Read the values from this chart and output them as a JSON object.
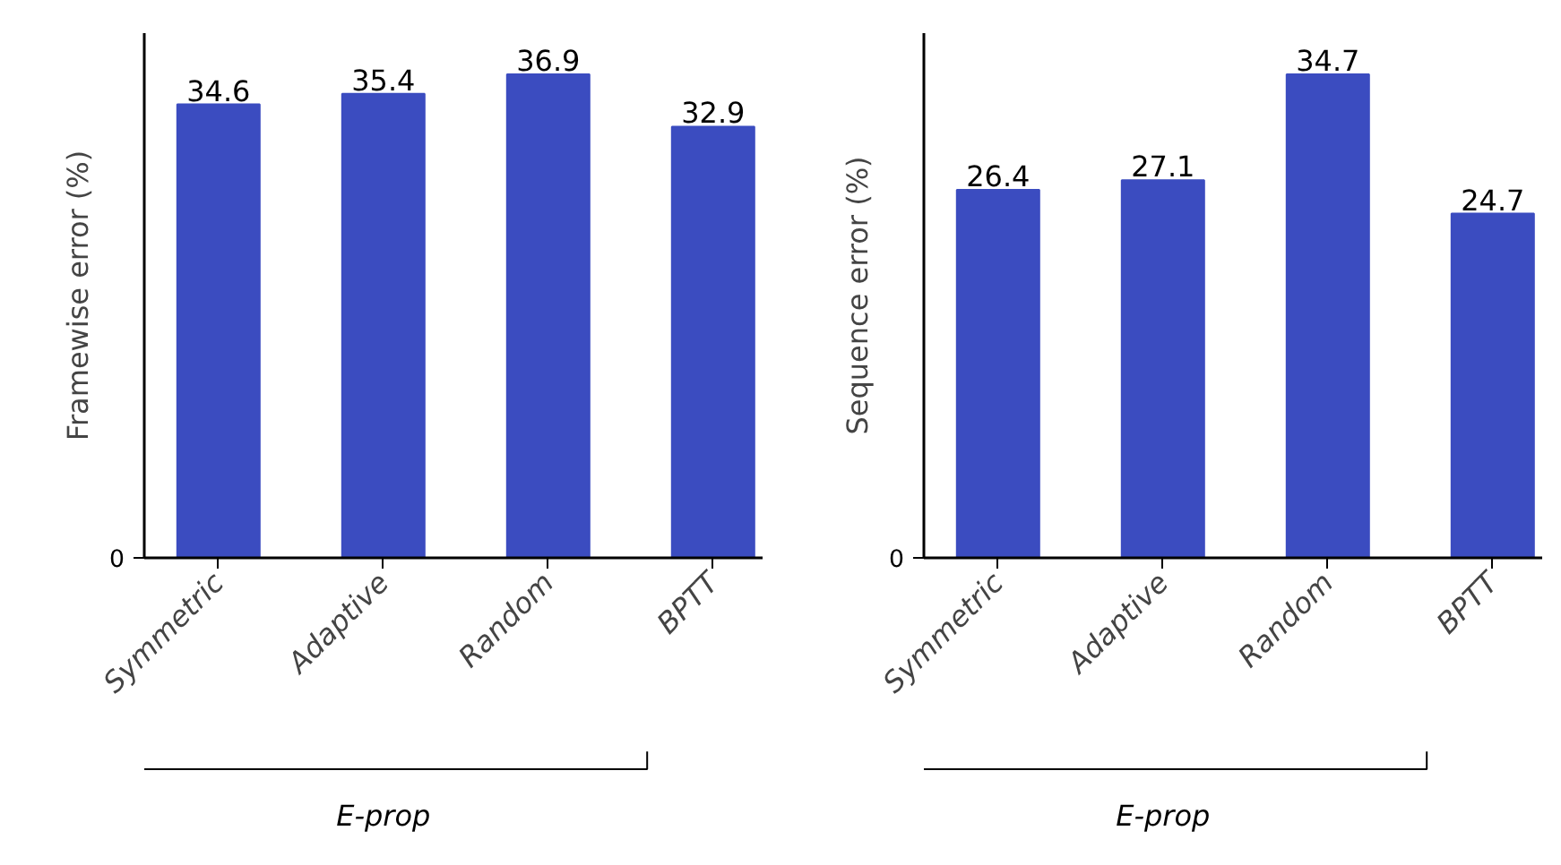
{
  "chart_data": [
    {
      "type": "bar",
      "ylabel": "Framewise error (%)",
      "categories": [
        "Symmetric",
        "Adaptive",
        "Random",
        "BPTT"
      ],
      "values": [
        34.6,
        35.4,
        36.9,
        32.9
      ],
      "color": "#3b4cc0",
      "data_labels": true,
      "grid": false,
      "annotations": [
        "0",
        "E-prop"
      ]
    },
    {
      "type": "bar",
      "ylabel": "Sequence error (%)",
      "categories": [
        "Symmetric",
        "Adaptive",
        "Random",
        "BPTT"
      ],
      "values": [
        26.4,
        27.1,
        34.7,
        24.7
      ],
      "color": "#3b4cc0",
      "data_labels": true,
      "grid": false,
      "annotations": [
        "0",
        "E-prop"
      ]
    }
  ]
}
